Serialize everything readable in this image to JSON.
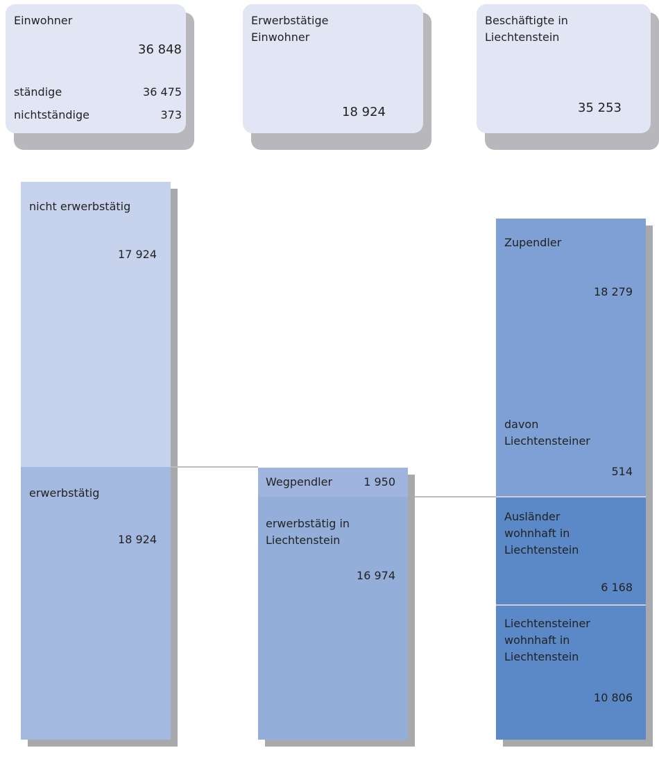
{
  "cards": [
    {
      "title": "Einwohner",
      "value": "36 848",
      "rows": [
        {
          "label": "ständige",
          "value": "36 475"
        },
        {
          "label": "nichtständige",
          "value": "373"
        }
      ]
    },
    {
      "title": "Erwerbstätige\nEinwohner",
      "value": "18 924"
    },
    {
      "title": "Beschäftigte in\nLiechtenstein",
      "value": "35 253"
    }
  ],
  "columns": [
    {
      "blocks": [
        {
          "label": "nicht erwerbstätig",
          "value": "17 924"
        },
        {
          "label": "erwerbstätig",
          "value": "18 924"
        }
      ]
    },
    {
      "blocks": [
        {
          "label": "Wegpendler",
          "value": "1 950"
        },
        {
          "label": "erwerbstätig in\nLiechtenstein",
          "value": "16 974"
        }
      ]
    },
    {
      "blocks": [
        {
          "label": "Zupendler",
          "value": "18 279",
          "sub_label": "davon\nLiechtensteiner",
          "sub_value": "514"
        },
        {
          "label": "Ausländer\nwohnhaft in\nLiechtenstein",
          "value": "6 168"
        },
        {
          "label": "Liechtensteiner\nwohnhaft in\nLiechtenstein",
          "value": "10 806"
        }
      ]
    }
  ]
}
